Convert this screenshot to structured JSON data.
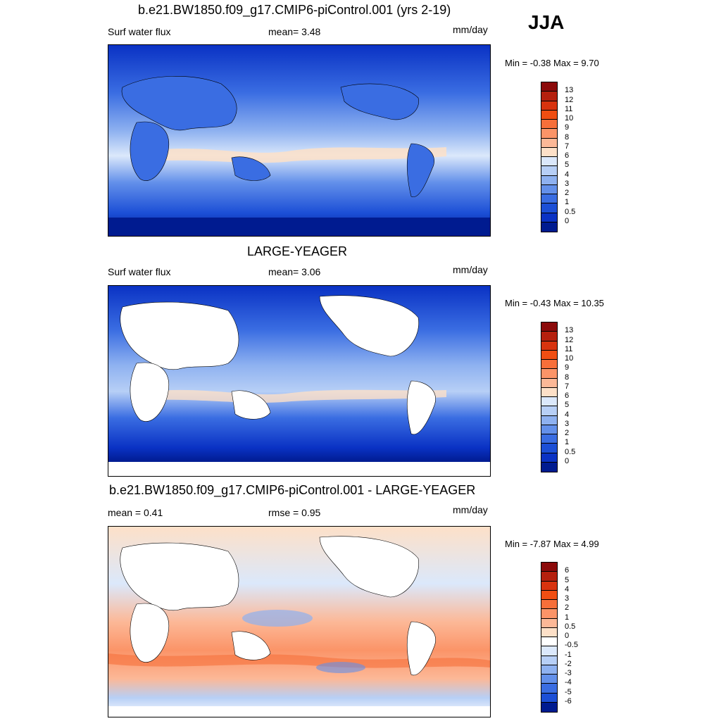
{
  "season": "JJA",
  "panels": [
    {
      "title": "b.e21.BW1850.f09_g17.CMIP6-piControl.001 (yrs 2-19)",
      "left_label": "Surf water flux",
      "center_label": "mean=   3.48",
      "units": "mm/day",
      "minmax": "Min =  -0.38 Max =    9.70",
      "colorbar_labels": [
        "13",
        "12",
        "11",
        "10",
        "9",
        "8",
        "7",
        "6",
        "5",
        "4",
        "3",
        "2",
        "1",
        "0.5",
        "0"
      ],
      "colorbar_colors": [
        "#8b0a0a",
        "#b5200e",
        "#d8330f",
        "#f04e12",
        "#f76f3a",
        "#fb9468",
        "#fcb897",
        "#fde0c8",
        "#dbe8fb",
        "#b7cff6",
        "#8eb1f0",
        "#6390ea",
        "#3a6de2",
        "#1c4fd6",
        "#0a32c4",
        "#001b90"
      ],
      "map_type": "full-field"
    },
    {
      "title": "LARGE-YEAGER",
      "left_label": "Surf water flux",
      "center_label": "mean=   3.06",
      "units": "mm/day",
      "minmax": "Min =  -0.43 Max =  10.35",
      "colorbar_labels": [
        "13",
        "12",
        "11",
        "10",
        "9",
        "8",
        "7",
        "6",
        "5",
        "4",
        "3",
        "2",
        "1",
        "0.5",
        "0"
      ],
      "colorbar_colors": [
        "#8b0a0a",
        "#b5200e",
        "#d8330f",
        "#f04e12",
        "#f76f3a",
        "#fb9468",
        "#fcb897",
        "#fde0c8",
        "#dbe8fb",
        "#b7cff6",
        "#8eb1f0",
        "#6390ea",
        "#3a6de2",
        "#1c4fd6",
        "#0a32c4",
        "#001b90"
      ],
      "map_type": "ocean-only"
    },
    {
      "title": "b.e21.BW1850.f09_g17.CMIP6-piControl.001 - LARGE-YEAGER",
      "left_label": "mean =   0.41",
      "center_label": "rmse =   0.95",
      "units": "mm/day",
      "minmax": "Min =  -7.87 Max =    4.99",
      "colorbar_labels": [
        "6",
        "5",
        "4",
        "3",
        "2",
        "1",
        "0.5",
        "0",
        "-0.5",
        "-1",
        "-2",
        "-3",
        "-4",
        "-5",
        "-6"
      ],
      "colorbar_colors": [
        "#8b0a0a",
        "#b5200e",
        "#d8330f",
        "#f04e12",
        "#f76f3a",
        "#fb9468",
        "#fcb897",
        "#fde0c8",
        "#ffffff",
        "#dbe8fb",
        "#b7cff6",
        "#8eb1f0",
        "#6390ea",
        "#3a6de2",
        "#1c4fd6",
        "#001b90"
      ],
      "map_type": "difference"
    }
  ]
}
